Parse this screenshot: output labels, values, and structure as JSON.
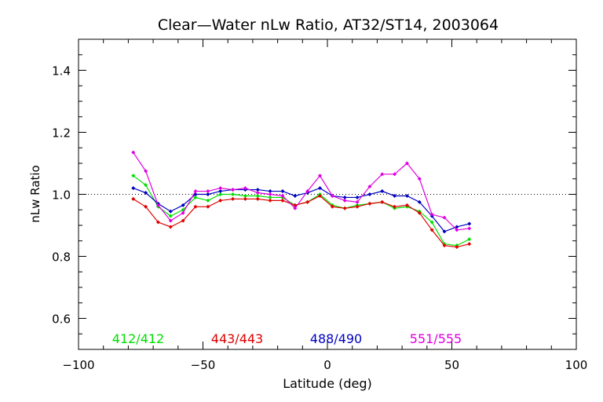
{
  "chart_data": {
    "type": "line",
    "title": "Clear—Water nLw Ratio, AT32/ST14, 2003064",
    "xlabel": "Latitude (deg)",
    "ylabel": "nLw Ratio",
    "xlim": [
      -100,
      100
    ],
    "ylim": [
      0.5,
      1.5
    ],
    "xticks": [
      -100,
      -50,
      0,
      50,
      100
    ],
    "xtick_labels": [
      "−100",
      "−50",
      "0",
      "50",
      "100"
    ],
    "yticks": [
      0.6,
      0.8,
      1.0,
      1.2,
      1.4
    ],
    "ytick_labels": [
      "0.6",
      "0.8",
      "1.0",
      "1.2",
      "1.4"
    ],
    "reference_line": 1.0,
    "legend_position": "bottom, inside plot",
    "x": [
      -78,
      -73,
      -68,
      -63,
      -58,
      -53,
      -48,
      -43,
      -38,
      -33,
      -28,
      -23,
      -18,
      -13,
      -8,
      -3,
      2,
      7,
      12,
      17,
      22,
      27,
      32,
      37,
      42,
      47,
      52,
      57
    ],
    "series": [
      {
        "name": "412/412",
        "color": "#00e000",
        "values": [
          1.06,
          1.03,
          0.96,
          0.93,
          0.95,
          0.99,
          0.98,
          1.0,
          1.0,
          0.995,
          0.995,
          0.99,
          0.99,
          0.965,
          0.975,
          1.0,
          0.965,
          0.955,
          0.965,
          0.97,
          0.975,
          0.955,
          0.96,
          0.945,
          0.91,
          0.84,
          0.835,
          0.855
        ]
      },
      {
        "name": "443/443",
        "color": "#e00000",
        "values": [
          0.985,
          0.96,
          0.91,
          0.895,
          0.915,
          0.96,
          0.96,
          0.98,
          0.985,
          0.985,
          0.985,
          0.98,
          0.98,
          0.965,
          0.975,
          0.995,
          0.96,
          0.955,
          0.96,
          0.97,
          0.975,
          0.96,
          0.965,
          0.94,
          0.885,
          0.835,
          0.83,
          0.84
        ]
      },
      {
        "name": "488/490",
        "color": "#0000c0",
        "values": [
          1.02,
          1.005,
          0.97,
          0.945,
          0.965,
          1.0,
          1.0,
          1.01,
          1.015,
          1.015,
          1.015,
          1.01,
          1.01,
          0.995,
          1.005,
          1.02,
          0.995,
          0.99,
          0.99,
          1.0,
          1.01,
          0.995,
          0.995,
          0.975,
          0.93,
          0.88,
          0.895,
          0.905
        ]
      },
      {
        "name": "551/555",
        "color": "#e000e0",
        "values": [
          1.135,
          1.075,
          0.965,
          0.915,
          0.94,
          1.01,
          1.01,
          1.02,
          1.015,
          1.02,
          1.005,
          1.0,
          0.995,
          0.955,
          1.01,
          1.06,
          0.995,
          0.98,
          0.975,
          1.025,
          1.065,
          1.065,
          1.1,
          1.05,
          0.935,
          0.925,
          0.885,
          0.89
        ]
      }
    ]
  }
}
